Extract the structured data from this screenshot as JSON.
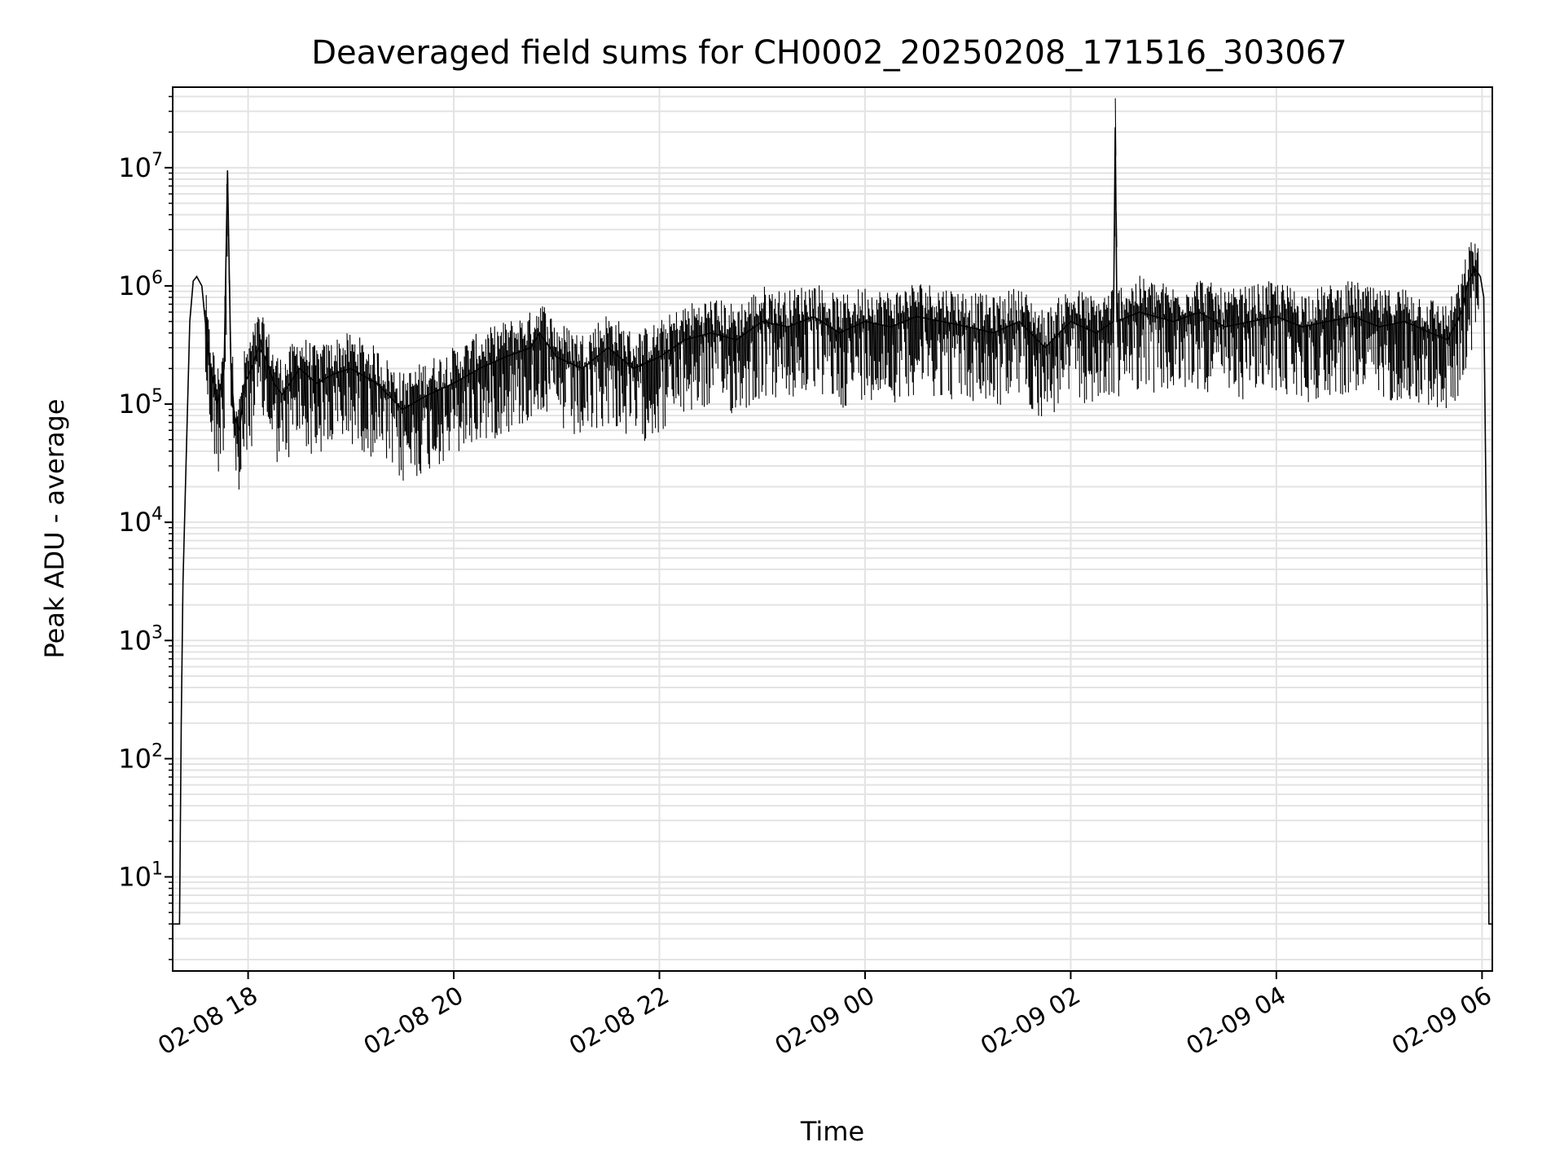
{
  "chart_data": {
    "type": "line",
    "title": "Deaveraged field sums for CH0002_20250208_171516_303067",
    "xlabel": "Time",
    "ylabel": "Peak ADU - average",
    "yscale": "log",
    "ylim": [
      1.6,
      48000000
    ],
    "xlim": [
      "2025-02-08 17:16",
      "2025-02-09 06:06"
    ],
    "grid": true,
    "line_color": "#000000",
    "x_ticks": [
      {
        "time": "2025-02-08 18:00",
        "label": "02-08 18"
      },
      {
        "time": "2025-02-08 20:00",
        "label": "02-08 20"
      },
      {
        "time": "2025-02-08 22:00",
        "label": "02-08 22"
      },
      {
        "time": "2025-02-09 00:00",
        "label": "02-09 00"
      },
      {
        "time": "2025-02-09 02:00",
        "label": "02-09 02"
      },
      {
        "time": "2025-02-09 04:00",
        "label": "02-09 04"
      },
      {
        "time": "2025-02-09 06:00",
        "label": "02-09 06"
      }
    ],
    "y_ticks": [
      {
        "value": 10,
        "label": "10",
        "exp": "1"
      },
      {
        "value": 100,
        "label": "10",
        "exp": "2"
      },
      {
        "value": 1000,
        "label": "10",
        "exp": "3"
      },
      {
        "value": 10000,
        "label": "10",
        "exp": "4"
      },
      {
        "value": 100000,
        "label": "10",
        "exp": "5"
      },
      {
        "value": 1000000,
        "label": "10",
        "exp": "6"
      },
      {
        "value": 10000000,
        "label": "10",
        "exp": "7"
      }
    ],
    "series": [
      {
        "x": [
          "2025-02-08 17:16",
          "2025-02-08 17:20",
          "2025-02-08 17:21",
          "2025-02-08 17:22",
          "2025-02-08 17:24",
          "2025-02-08 17:26",
          "2025-02-08 17:28",
          "2025-02-08 17:30",
          "2025-02-08 17:33",
          "2025-02-08 17:37",
          "2025-02-08 17:42",
          "2025-02-08 17:46",
          "2025-02-08 17:48",
          "2025-02-08 17:50",
          "2025-02-08 17:52",
          "2025-02-08 17:55",
          "2025-02-08 17:58",
          "2025-02-08 18:02",
          "2025-02-08 18:06",
          "2025-02-08 18:10",
          "2025-02-08 18:15",
          "2025-02-08 18:20",
          "2025-02-08 18:30",
          "2025-02-08 18:40",
          "2025-02-08 18:50",
          "2025-02-08 19:00",
          "2025-02-08 19:15",
          "2025-02-08 19:30",
          "2025-02-08 19:45",
          "2025-02-08 20:00",
          "2025-02-08 20:15",
          "2025-02-08 20:30",
          "2025-02-08 20:45",
          "2025-02-08 20:50",
          "2025-02-08 21:00",
          "2025-02-08 21:15",
          "2025-02-08 21:30",
          "2025-02-08 21:45",
          "2025-02-08 22:00",
          "2025-02-08 22:15",
          "2025-02-08 22:30",
          "2025-02-08 22:45",
          "2025-02-08 23:00",
          "2025-02-08 23:15",
          "2025-02-08 23:30",
          "2025-02-08 23:45",
          "2025-02-09 00:00",
          "2025-02-09 00:15",
          "2025-02-09 00:30",
          "2025-02-09 00:45",
          "2025-02-09 01:00",
          "2025-02-09 01:15",
          "2025-02-09 01:30",
          "2025-02-09 01:45",
          "2025-02-09 02:00",
          "2025-02-09 02:15",
          "2025-02-09 02:25",
          "2025-02-09 02:26",
          "2025-02-09 02:27",
          "2025-02-09 02:40",
          "2025-02-09 03:00",
          "2025-02-09 03:15",
          "2025-02-09 03:30",
          "2025-02-09 03:45",
          "2025-02-09 04:00",
          "2025-02-09 04:15",
          "2025-02-09 04:30",
          "2025-02-09 04:45",
          "2025-02-09 05:00",
          "2025-02-09 05:15",
          "2025-02-09 05:30",
          "2025-02-09 05:40",
          "2025-02-09 05:48",
          "2025-02-09 05:52",
          "2025-02-09 05:56",
          "2025-02-09 05:59",
          "2025-02-09 06:01",
          "2025-02-09 06:03",
          "2025-02-09 06:04",
          "2025-02-09 06:06"
        ],
        "y": [
          4,
          4,
          200,
          3000,
          40000,
          500000,
          1100000,
          1200000,
          1000000,
          250000,
          100000,
          200000,
          9500000,
          200000,
          80000,
          60000,
          150000,
          200000,
          300000,
          250000,
          150000,
          120000,
          200000,
          150000,
          180000,
          200000,
          150000,
          90000,
          120000,
          150000,
          200000,
          250000,
          300000,
          400000,
          250000,
          200000,
          300000,
          200000,
          250000,
          350000,
          400000,
          350000,
          500000,
          450000,
          550000,
          400000,
          500000,
          450000,
          550000,
          500000,
          450000,
          400000,
          500000,
          300000,
          500000,
          400000,
          500000,
          22000000,
          500000,
          600000,
          500000,
          600000,
          450000,
          500000,
          550000,
          450000,
          500000,
          550000,
          450000,
          500000,
          400000,
          350000,
          600000,
          1100000,
          1400000,
          1200000,
          800000,
          2000,
          4,
          4
        ]
      }
    ]
  }
}
